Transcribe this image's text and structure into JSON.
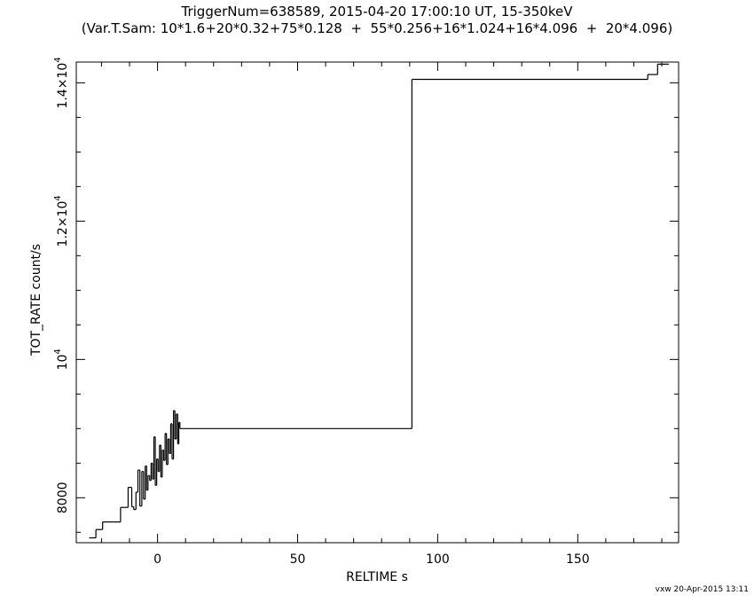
{
  "title_line1": "TriggerNum=638589, 2015-04-20 17:00:10 UT, 15-350keV",
  "title_line2": "(Var.T.Sam: 10*1.6+20*0.32+75*0.128  +  55*0.256+16*1.024+16*4.096  +  20*4.096)",
  "footer": "vxw 20-Apr-2015 13:11",
  "chart_data": {
    "type": "line",
    "step": true,
    "xlabel": "RELTIME  s",
    "ylabel": "TOT_RATE  count/s",
    "xlim": [
      -29,
      186
    ],
    "ylim": [
      7350,
      14300
    ],
    "x_ticks": [
      {
        "value": 0,
        "label": "0"
      },
      {
        "value": 50,
        "label": "50"
      },
      {
        "value": 100,
        "label": "100"
      },
      {
        "value": 150,
        "label": "150"
      }
    ],
    "y_ticks": [
      {
        "value": 8000,
        "label": "8000",
        "exp": ""
      },
      {
        "value": 10000,
        "label": "10",
        "exp": "4"
      },
      {
        "value": 12000,
        "label": "1.2×10",
        "exp": "4"
      },
      {
        "value": 14000,
        "label": "1.4×10",
        "exp": "4"
      }
    ],
    "series": [
      {
        "x": [
          -24.4,
          -22.0,
          -19.6,
          -15.9,
          -13.2,
          -11.6,
          -10.5,
          -9.2,
          -8.5,
          -7.7,
          -7.0,
          -6.3,
          -5.6,
          -5.0,
          -4.4,
          -3.9,
          -3.4,
          -2.8,
          -2.3,
          -1.8,
          -1.3,
          -0.8,
          -0.3,
          0.2,
          0.7,
          1.2,
          1.7,
          2.2,
          2.7,
          3.2,
          3.7,
          4.2,
          4.7,
          5.2,
          5.7,
          6.2,
          6.7,
          7.2,
          7.6,
          8.0,
          90.8,
          175.0,
          178.5,
          182.5
        ],
        "y": [
          7420,
          7540,
          7650,
          7650,
          7860,
          7860,
          8150,
          7870,
          7830,
          8080,
          8400,
          7880,
          8380,
          7980,
          8460,
          8110,
          8320,
          8250,
          8500,
          8270,
          8880,
          8180,
          8560,
          8380,
          8760,
          8300,
          8690,
          8540,
          8930,
          8480,
          8850,
          8640,
          9070,
          8560,
          9260,
          8850,
          9210,
          8780,
          9090,
          9000,
          14050,
          14120,
          14270,
          14270
        ]
      }
    ]
  }
}
